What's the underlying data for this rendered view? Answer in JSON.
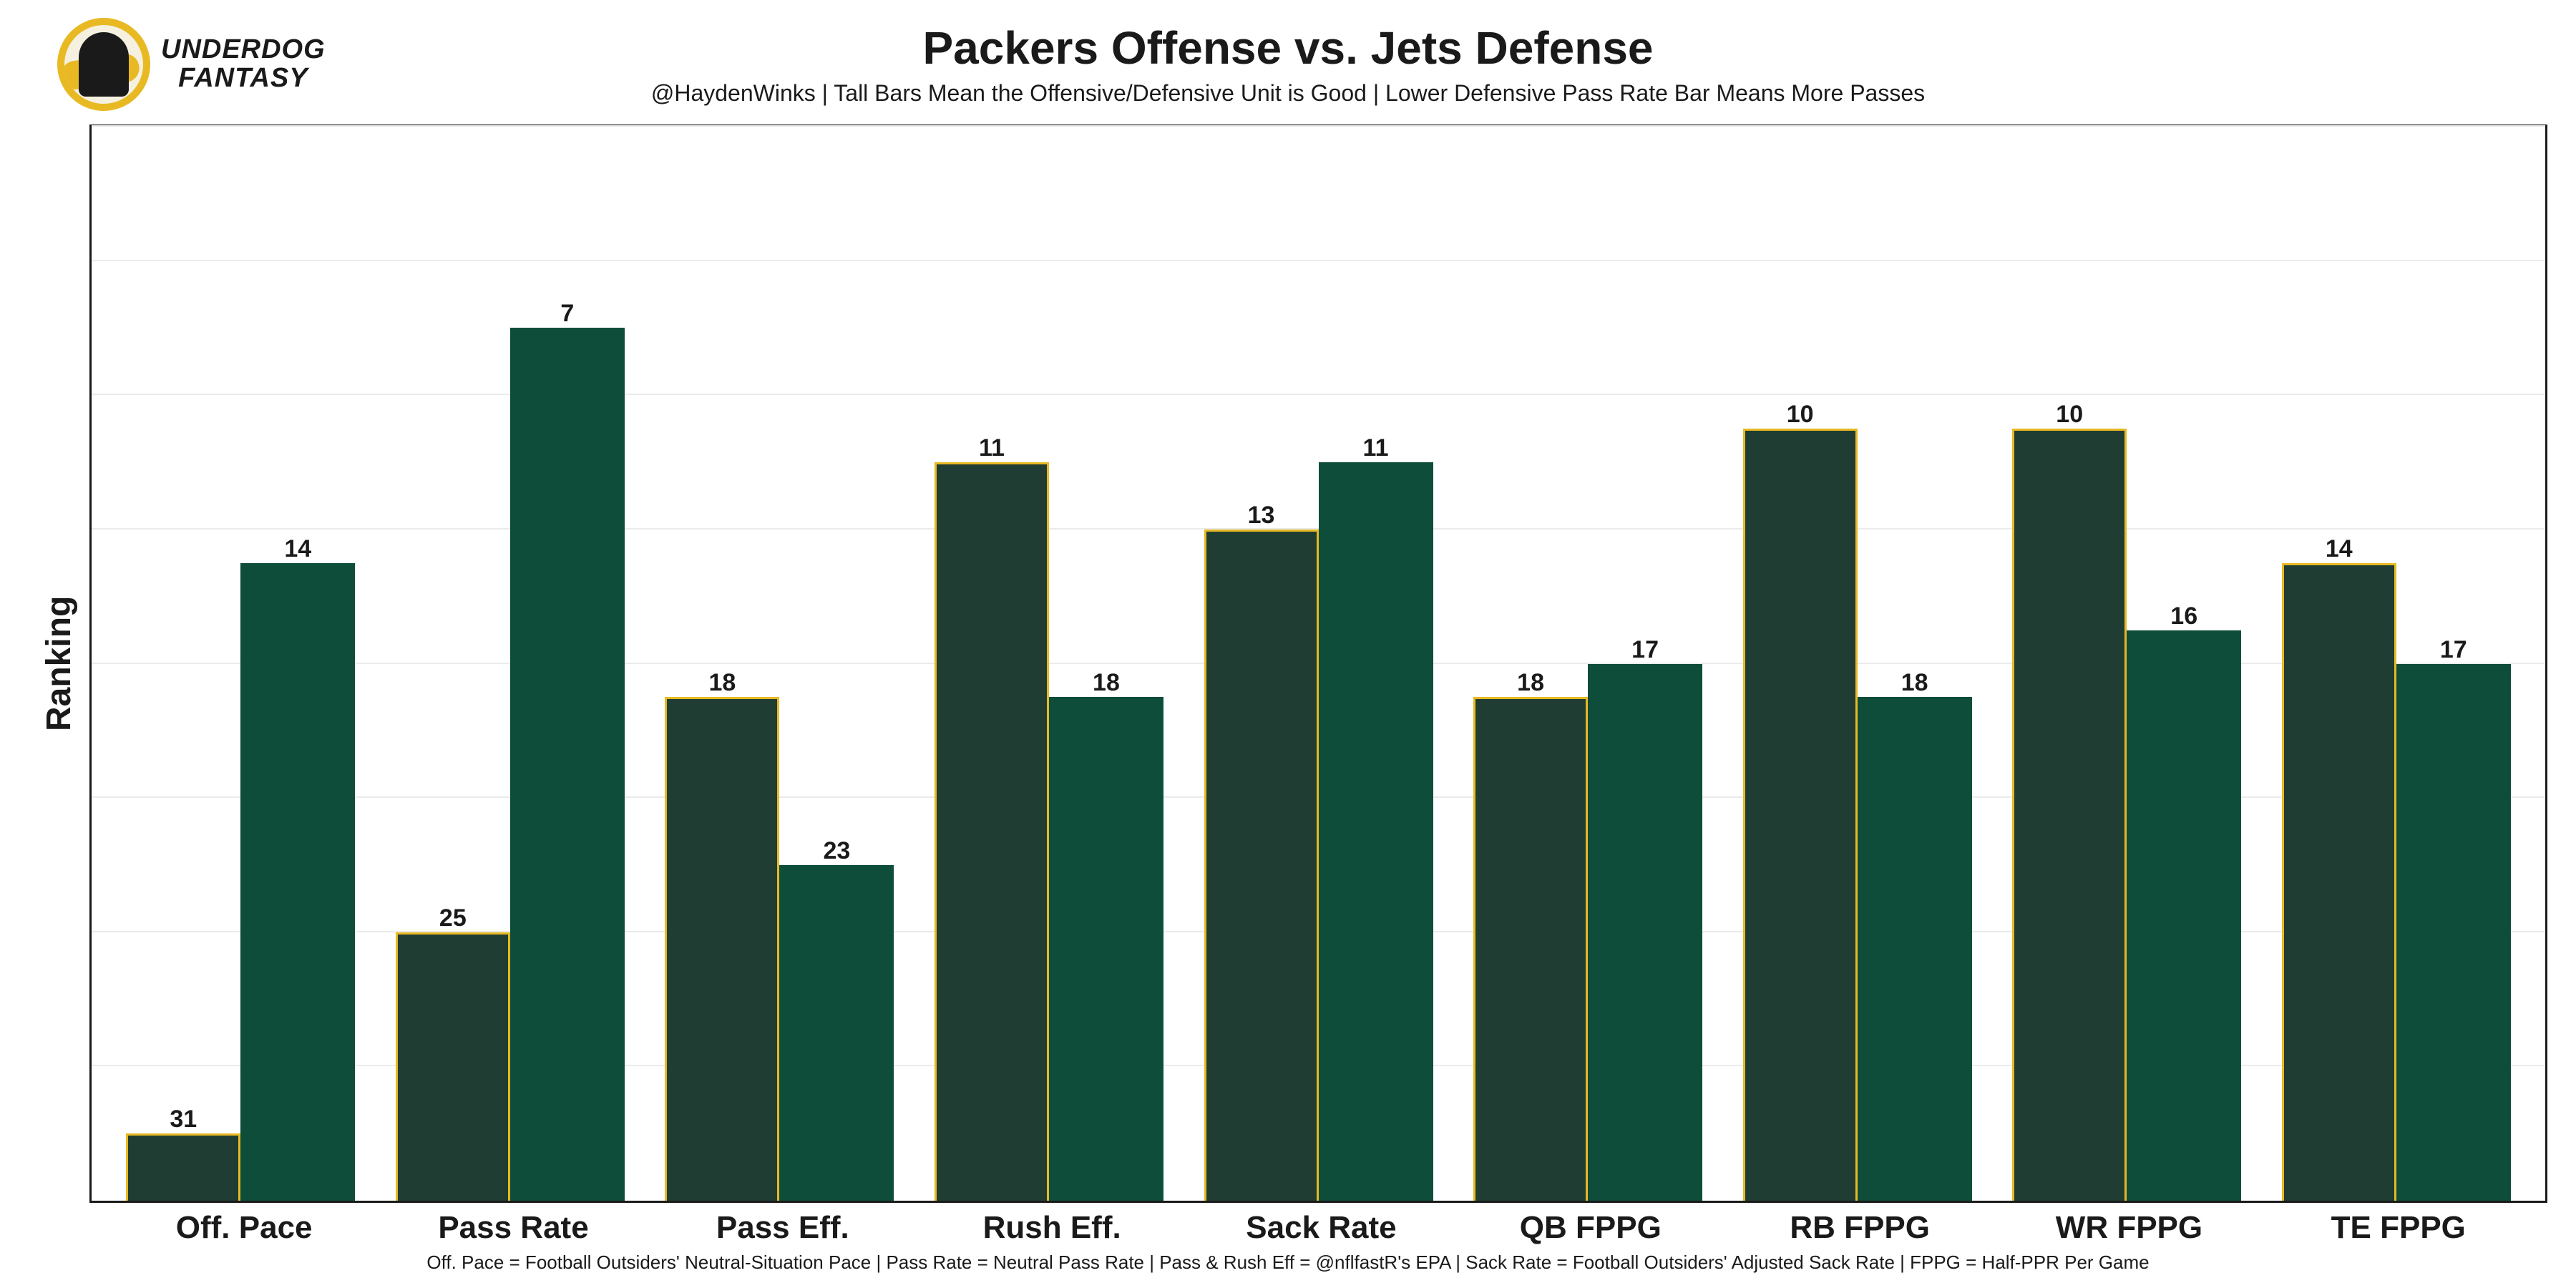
{
  "brand": {
    "line1": "UNDERDOG",
    "line2": "FANTASY"
  },
  "title": "Packers Offense vs. Jets Defense",
  "subtitle": "@HaydenWinks | Tall Bars Mean the Offensive/Defensive Unit is Good | Lower Defensive Pass Rate Bar Means More Passes",
  "y_axis_label": "Ranking",
  "footer": "Off. Pace = Football Outsiders' Neutral-Situation Pace | Pass Rate = Neutral Pass Rate | Pass & Rush Eff = @nflfastR's EPA | Sack Rate = Football Outsiders' Adjusted Sack Rate | FPPG = Half-PPR Per Game",
  "chart": {
    "type": "bar",
    "rank_min": 1,
    "rank_max": 32,
    "grid_step": 4,
    "background_color": "#ffffff",
    "grid_color": "#ebebeb",
    "border_color": "#1a1a1a",
    "label_fontsize": 34,
    "axis_fontsize": 44,
    "colors": {
      "offense_fill": "#1f3d33",
      "offense_border": "#e8b923",
      "defense_fill": "#0d4d3a"
    },
    "categories": [
      {
        "label": "Off. Pace",
        "offense": 31,
        "defense": 14
      },
      {
        "label": "Pass Rate",
        "offense": 25,
        "defense": 7
      },
      {
        "label": "Pass Eff.",
        "offense": 18,
        "defense": 23
      },
      {
        "label": "Rush Eff.",
        "offense": 11,
        "defense": 18
      },
      {
        "label": "Sack Rate",
        "offense": 13,
        "defense": 11
      },
      {
        "label": "QB FPPG",
        "offense": 18,
        "defense": 17
      },
      {
        "label": "RB FPPG",
        "offense": 10,
        "defense": 18
      },
      {
        "label": "WR FPPG",
        "offense": 10,
        "defense": 16
      },
      {
        "label": "TE FPPG",
        "offense": 14,
        "defense": 17
      }
    ]
  }
}
